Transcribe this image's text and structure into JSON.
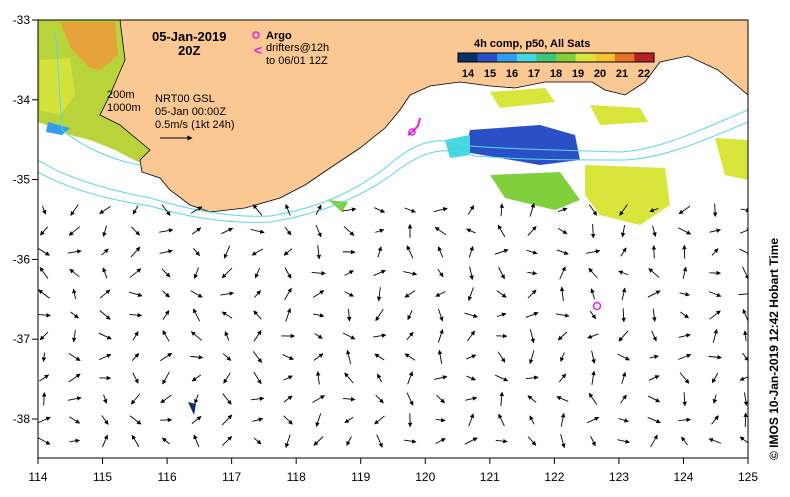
{
  "map": {
    "date_label": "05-Jan-2019",
    "time_label": "20Z",
    "bathy_200": "200m",
    "bathy_1000": "1000m",
    "current_source": "NRT00 GSL",
    "current_date": "05-Jan 00:00Z",
    "scale_label": "0.5m/s (1kt 24h)",
    "argo_label": "Argo",
    "drifter_label": "drifters@12h",
    "drifter_range": "to 06/01 12Z",
    "colorbar_title": "4h comp, p50, All Sats",
    "colorbar_ticks": [
      "14",
      "15",
      "16",
      "17",
      "18",
      "19",
      "20",
      "21",
      "22"
    ],
    "colorbar_colors": [
      "#08306b",
      "#2a50c8",
      "#2f9ef0",
      "#45d7e0",
      "#3fc67a",
      "#7fd03c",
      "#d8e53a",
      "#f5c232",
      "#e7712a",
      "#b8211f"
    ],
    "credit": "© IMOS 10-Jan-2019 12:42 Hobart Time",
    "x_ticks": [
      "114",
      "115",
      "116",
      "117",
      "118",
      "119",
      "120",
      "121",
      "122",
      "123",
      "124",
      "125"
    ],
    "y_ticks": [
      "-33",
      "-34",
      "-35",
      "-36",
      "-37",
      "-38"
    ],
    "land_color": "#fbc792",
    "contour_color": "#5ad8e8",
    "marker_color": "#e020e0"
  }
}
